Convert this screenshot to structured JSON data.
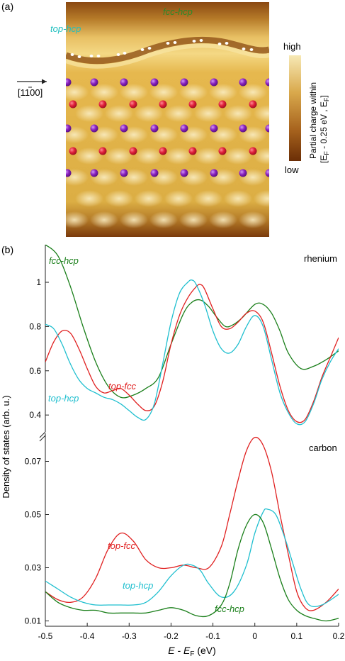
{
  "panel_a": {
    "label": "(a)",
    "label_top_hcp": "top-hcp",
    "label_fcc_hcp": "fcc-hcp",
    "direction": "[1100]",
    "colorbar": {
      "high": "high",
      "low": "low",
      "title_line1": "Partial charge within",
      "title_line2": "[E",
      "title_line2b": " - 0.25 eV , E",
      "title_line2c": "]"
    },
    "colors": {
      "label_top_hcp": "#1fbfbf",
      "label_fcc_hcp": "#2a8a2a",
      "atom_red": "#e0203a",
      "atom_purple": "#8a22c0",
      "bright": "#f6e6a0",
      "dark": "#7a3608"
    }
  },
  "panel_b": {
    "label": "(b)"
  },
  "chart_data": [
    {
      "type": "line",
      "subplot": "top",
      "annotation": "rhenium",
      "ylabel": "Density of states (arb. u.)",
      "xlim": [
        -0.5,
        0.2
      ],
      "ylim": [
        0.33,
        1.17
      ],
      "yticks": [
        0.4,
        0.6,
        0.8,
        1
      ],
      "series": [
        {
          "name": "fcc-hcp",
          "color": "#1a7f1a",
          "x": [
            -0.5,
            -0.47,
            -0.44,
            -0.41,
            -0.38,
            -0.35,
            -0.32,
            -0.29,
            -0.26,
            -0.23,
            -0.2,
            -0.17,
            -0.15,
            -0.13,
            -0.11,
            -0.09,
            -0.07,
            -0.05,
            -0.03,
            0.0,
            0.02,
            0.04,
            0.06,
            0.08,
            0.11,
            0.14,
            0.17,
            0.2
          ],
          "y": [
            1.17,
            1.12,
            0.98,
            0.8,
            0.64,
            0.53,
            0.48,
            0.49,
            0.52,
            0.57,
            0.72,
            0.86,
            0.91,
            0.92,
            0.89,
            0.84,
            0.8,
            0.81,
            0.84,
            0.9,
            0.9,
            0.86,
            0.78,
            0.68,
            0.61,
            0.62,
            0.65,
            0.69
          ]
        },
        {
          "name": "top-fcc",
          "color": "#e02020",
          "x": [
            -0.5,
            -0.48,
            -0.46,
            -0.44,
            -0.42,
            -0.4,
            -0.38,
            -0.36,
            -0.34,
            -0.32,
            -0.3,
            -0.28,
            -0.26,
            -0.24,
            -0.22,
            -0.2,
            -0.18,
            -0.16,
            -0.14,
            -0.13,
            -0.12,
            -0.1,
            -0.08,
            -0.06,
            -0.04,
            -0.02,
            0.0,
            0.02,
            0.04,
            0.06,
            0.08,
            0.1,
            0.12,
            0.14,
            0.16,
            0.18,
            0.2
          ],
          "y": [
            0.64,
            0.73,
            0.78,
            0.77,
            0.7,
            0.61,
            0.53,
            0.5,
            0.51,
            0.52,
            0.49,
            0.45,
            0.42,
            0.44,
            0.55,
            0.72,
            0.85,
            0.93,
            0.98,
            0.99,
            0.97,
            0.88,
            0.8,
            0.79,
            0.82,
            0.86,
            0.87,
            0.82,
            0.68,
            0.53,
            0.42,
            0.37,
            0.38,
            0.46,
            0.57,
            0.66,
            0.75
          ]
        },
        {
          "name": "top-hcp",
          "color": "#1fbfcf",
          "x": [
            -0.5,
            -0.48,
            -0.46,
            -0.44,
            -0.42,
            -0.4,
            -0.38,
            -0.36,
            -0.34,
            -0.32,
            -0.3,
            -0.28,
            -0.26,
            -0.24,
            -0.22,
            -0.2,
            -0.18,
            -0.16,
            -0.15,
            -0.14,
            -0.12,
            -0.1,
            -0.08,
            -0.06,
            -0.04,
            -0.02,
            0.0,
            0.02,
            0.04,
            0.06,
            0.08,
            0.1,
            0.12,
            0.14,
            0.16,
            0.18,
            0.2
          ],
          "y": [
            0.81,
            0.79,
            0.72,
            0.63,
            0.56,
            0.52,
            0.5,
            0.48,
            0.47,
            0.45,
            0.42,
            0.39,
            0.38,
            0.45,
            0.63,
            0.82,
            0.95,
            1.0,
            1.01,
            0.99,
            0.9,
            0.78,
            0.7,
            0.68,
            0.72,
            0.8,
            0.85,
            0.8,
            0.65,
            0.5,
            0.41,
            0.36,
            0.37,
            0.45,
            0.56,
            0.64,
            0.7
          ]
        }
      ],
      "annotations": [
        {
          "text": "fcc-hcp",
          "series": "fcc-hcp"
        },
        {
          "text": "top-fcc",
          "series": "top-fcc"
        },
        {
          "text": "top-hcp",
          "series": "top-hcp"
        }
      ]
    },
    {
      "type": "line",
      "subplot": "bottom",
      "annotation": "carbon",
      "xlabel": "E - E",
      "xlabel_sub": "F",
      "xlabel_unit": " (eV)",
      "xlim": [
        -0.5,
        0.2
      ],
      "ylim": [
        0.008,
        0.08
      ],
      "xticks": [
        -0.5,
        -0.4,
        -0.3,
        -0.2,
        -0.1,
        0,
        0.1,
        0.2
      ],
      "yticks": [
        0.01,
        0.03,
        0.05,
        0.07
      ],
      "series": [
        {
          "name": "top-fcc",
          "color": "#e02020",
          "x": [
            -0.5,
            -0.47,
            -0.44,
            -0.41,
            -0.38,
            -0.35,
            -0.32,
            -0.29,
            -0.26,
            -0.23,
            -0.2,
            -0.17,
            -0.14,
            -0.11,
            -0.08,
            -0.06,
            -0.04,
            -0.02,
            0.0,
            0.02,
            0.04,
            0.06,
            0.08,
            0.1,
            0.12,
            0.14,
            0.17,
            0.2
          ],
          "y": [
            0.021,
            0.018,
            0.017,
            0.019,
            0.026,
            0.037,
            0.043,
            0.04,
            0.033,
            0.03,
            0.03,
            0.031,
            0.03,
            0.03,
            0.038,
            0.05,
            0.063,
            0.074,
            0.079,
            0.076,
            0.066,
            0.05,
            0.035,
            0.021,
            0.015,
            0.014,
            0.017,
            0.022
          ]
        },
        {
          "name": "top-hcp",
          "color": "#1fbfcf",
          "x": [
            -0.5,
            -0.47,
            -0.44,
            -0.41,
            -0.38,
            -0.35,
            -0.32,
            -0.29,
            -0.26,
            -0.23,
            -0.2,
            -0.17,
            -0.15,
            -0.13,
            -0.11,
            -0.08,
            -0.05,
            -0.02,
            0.0,
            0.02,
            0.03,
            0.05,
            0.07,
            0.09,
            0.11,
            0.13,
            0.16,
            0.2
          ],
          "y": [
            0.025,
            0.022,
            0.019,
            0.017,
            0.016,
            0.016,
            0.016,
            0.016,
            0.017,
            0.021,
            0.027,
            0.031,
            0.031,
            0.029,
            0.024,
            0.019,
            0.021,
            0.031,
            0.043,
            0.051,
            0.052,
            0.05,
            0.042,
            0.032,
            0.022,
            0.016,
            0.016,
            0.02
          ]
        },
        {
          "name": "fcc-hcp",
          "color": "#1a7f1a",
          "x": [
            -0.5,
            -0.47,
            -0.44,
            -0.41,
            -0.38,
            -0.35,
            -0.32,
            -0.29,
            -0.26,
            -0.23,
            -0.2,
            -0.17,
            -0.14,
            -0.11,
            -0.08,
            -0.06,
            -0.04,
            -0.02,
            0.0,
            0.02,
            0.04,
            0.06,
            0.08,
            0.1,
            0.12,
            0.14,
            0.17,
            0.2
          ],
          "y": [
            0.021,
            0.017,
            0.015,
            0.014,
            0.014,
            0.013,
            0.013,
            0.013,
            0.013,
            0.014,
            0.015,
            0.014,
            0.012,
            0.012,
            0.016,
            0.024,
            0.037,
            0.046,
            0.05,
            0.047,
            0.037,
            0.026,
            0.018,
            0.014,
            0.012,
            0.011,
            0.01,
            0.011
          ]
        }
      ],
      "annotations": [
        {
          "text": "top-fcc",
          "series": "top-fcc"
        },
        {
          "text": "top-hcp",
          "series": "top-hcp"
        },
        {
          "text": "fcc-hcp",
          "series": "fcc-hcp"
        }
      ]
    }
  ]
}
